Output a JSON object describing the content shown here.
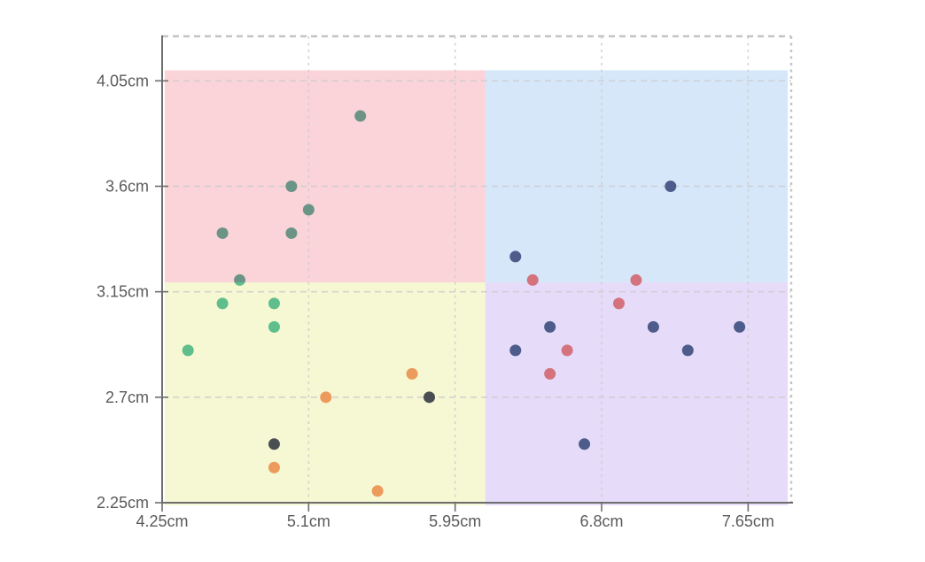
{
  "chart_data": {
    "type": "scatter",
    "title": "",
    "xlabel": "",
    "ylabel": "",
    "unit": "cm",
    "grid": "dashed",
    "legend": "none",
    "x_axis": {
      "min": 4.25,
      "max": 7.9,
      "ticks": [
        {
          "value": 4.25,
          "label": "4.25cm"
        },
        {
          "value": 5.1,
          "label": "5.1cm"
        },
        {
          "value": 5.95,
          "label": "5.95cm"
        },
        {
          "value": 6.8,
          "label": "6.8cm"
        },
        {
          "value": 7.65,
          "label": "7.65cm"
        }
      ]
    },
    "y_axis": {
      "min": 2.25,
      "max": 4.24,
      "ticks": [
        {
          "value": 2.25,
          "label": "2.25cm"
        },
        {
          "value": 2.7,
          "label": "2.7cm"
        },
        {
          "value": 3.15,
          "label": "3.15cm"
        },
        {
          "value": 3.6,
          "label": "3.6cm"
        },
        {
          "value": 4.05,
          "label": "4.05cm"
        }
      ]
    },
    "quadrants": {
      "x_split": 6.125,
      "y_split": 3.19,
      "x0": 4.265,
      "x1": 7.88,
      "y0": 2.239,
      "y1": 4.095,
      "colors": {
        "top_left": "#FAD4D8",
        "top_right": "#D7E7FA",
        "bottom_left": "#F6F8D3",
        "bottom_right": "#E7DBFA"
      }
    },
    "point_radius": 6.5,
    "series": [
      {
        "name": "teal-points",
        "color": "#6B9486",
        "points": [
          [
            5.4,
            3.9
          ],
          [
            5.0,
            3.6
          ],
          [
            5.1,
            3.5
          ],
          [
            4.6,
            3.4
          ],
          [
            5.0,
            3.4
          ]
        ]
      },
      {
        "name": "teal-green-boundary-point",
        "color": "split-teal-green",
        "split_colors": [
          "#6B9486",
          "#5FBE8B"
        ],
        "points": [
          [
            4.7,
            3.2
          ]
        ]
      },
      {
        "name": "green-points",
        "color": "#5FBE8B",
        "points": [
          [
            4.6,
            3.1
          ],
          [
            4.9,
            3.1
          ],
          [
            4.9,
            3.0
          ],
          [
            4.4,
            2.9
          ]
        ]
      },
      {
        "name": "orange-points",
        "color": "#EC9B5C",
        "points": [
          [
            5.7,
            2.8
          ],
          [
            5.2,
            2.7
          ],
          [
            4.9,
            2.4
          ],
          [
            5.5,
            2.3
          ]
        ]
      },
      {
        "name": "dark-gray-points",
        "color": "#494E52",
        "points": [
          [
            5.8,
            2.7
          ],
          [
            4.9,
            2.5
          ]
        ]
      },
      {
        "name": "navy-points",
        "color": "#4D5C8A",
        "points": [
          [
            7.2,
            3.6
          ],
          [
            6.3,
            3.3
          ],
          [
            6.5,
            3.0
          ],
          [
            7.1,
            3.0
          ],
          [
            7.6,
            3.0
          ],
          [
            6.3,
            2.9
          ],
          [
            7.3,
            2.9
          ],
          [
            6.7,
            2.5
          ]
        ]
      },
      {
        "name": "red-points",
        "color": "#D4737E",
        "points": [
          [
            6.4,
            3.2
          ],
          [
            7.0,
            3.2
          ],
          [
            6.9,
            3.1
          ],
          [
            6.6,
            2.9
          ],
          [
            6.5,
            2.8
          ]
        ]
      }
    ],
    "style_colors": {
      "axis": "#6e6e6e",
      "gridline": "#cccccc",
      "frame_dashed": "#c4c4c4",
      "tick_label": "#5b5b5b"
    }
  }
}
